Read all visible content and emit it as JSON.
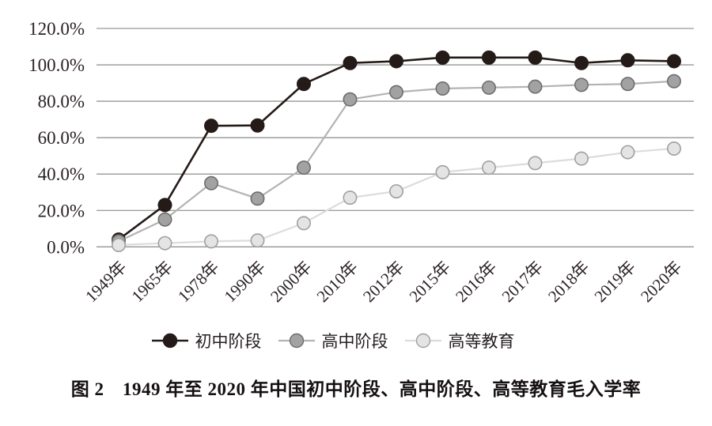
{
  "chart_data": {
    "type": "line",
    "title": "图 2　1949 年至 2020 年中国初中阶段、高中阶段、高等教育毛入学率",
    "categories": [
      "1949年",
      "1965年",
      "1978年",
      "1990年",
      "2000年",
      "2010年",
      "2012年",
      "2015年",
      "2016年",
      "2017年",
      "2018年",
      "2019年",
      "2020年"
    ],
    "y_ticks": [
      "0.0%",
      "20.0%",
      "40.0%",
      "60.0%",
      "80.0%",
      "100.0%",
      "120.0%"
    ],
    "ylim": [
      0,
      120
    ],
    "y_step": 20,
    "grid": "horizontal-only",
    "legend_position": "bottom",
    "series": [
      {
        "name": "初中阶段",
        "values": [
          4.0,
          23.0,
          66.5,
          66.7,
          89.5,
          101.0,
          102.0,
          104.0,
          104.0,
          104.0,
          101.0,
          102.5,
          102.0
        ],
        "line_color": "#241b18",
        "marker_fill": "#241b18",
        "marker_edge": "#241b18",
        "line_width": 2.6
      },
      {
        "name": "高中阶段",
        "values": [
          3.0,
          15.0,
          35.0,
          26.5,
          43.5,
          81.0,
          85.0,
          87.0,
          87.5,
          88.0,
          89.0,
          89.5,
          91.0
        ],
        "line_color": "#b3b3b3",
        "marker_fill": "#a2a2a2",
        "marker_edge": "#6e6e6e",
        "line_width": 2.2
      },
      {
        "name": "高等教育",
        "values": [
          1.0,
          2.0,
          3.0,
          3.5,
          13.0,
          27.0,
          30.5,
          41.0,
          43.5,
          46.0,
          48.5,
          52.0,
          54.0
        ],
        "line_color": "#dcdcdc",
        "marker_fill": "#e4e4e4",
        "marker_edge": "#a0a0a0",
        "line_width": 2.2
      }
    ],
    "grid_color": "#7f7f7f",
    "axis_text_color": "#2a2123"
  }
}
